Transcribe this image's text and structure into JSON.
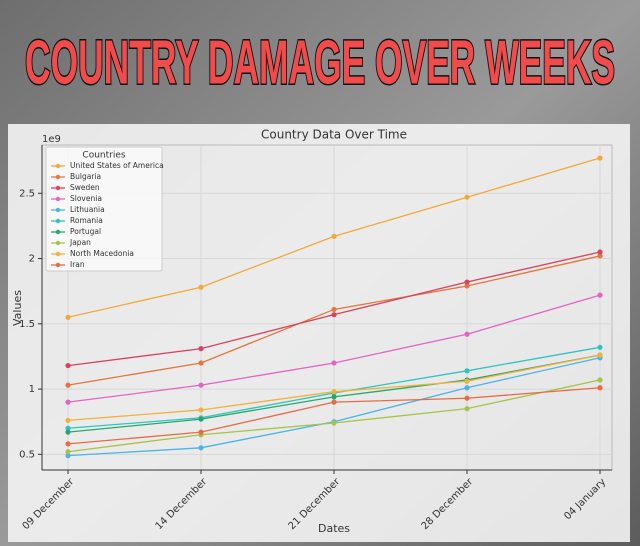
{
  "header": {
    "title": "COUNTRY DAMAGE OVER WEEKS"
  },
  "chart_data": {
    "type": "line",
    "title": "Country Data Over Time",
    "x_label": "Dates",
    "y_label": "Values",
    "y_offset_label": "1e9",
    "legend_title": "Countries",
    "legend_position": "upper left",
    "grid": true,
    "categories": [
      "09 December",
      "14 December",
      "21 December",
      "28 December",
      "04 January"
    ],
    "ylim": [
      0.38,
      2.87
    ],
    "yticks": [
      0.5,
      1.0,
      1.5,
      2.0,
      2.5
    ],
    "series": [
      {
        "name": "United States of America",
        "color": "#f2a93b",
        "values": [
          1.55,
          1.78,
          2.17,
          2.47,
          2.77
        ]
      },
      {
        "name": "Bulgaria",
        "color": "#e8743b",
        "values": [
          1.03,
          1.2,
          1.61,
          1.79,
          2.02
        ]
      },
      {
        "name": "Sweden",
        "color": "#d9435e",
        "values": [
          1.18,
          1.31,
          1.57,
          1.82,
          2.05
        ]
      },
      {
        "name": "Slovenia",
        "color": "#e563c4",
        "values": [
          0.9,
          1.03,
          1.2,
          1.42,
          1.72
        ]
      },
      {
        "name": "Lithuania",
        "color": "#4ab4e8",
        "values": [
          0.49,
          0.55,
          0.75,
          1.01,
          1.24
        ]
      },
      {
        "name": "Romania",
        "color": "#2ec4c4",
        "values": [
          0.7,
          0.78,
          0.97,
          1.14,
          1.32
        ]
      },
      {
        "name": "Portugal",
        "color": "#27a86a",
        "values": [
          0.67,
          0.77,
          0.94,
          1.07,
          1.26
        ]
      },
      {
        "name": "Japan",
        "color": "#a4c44a",
        "values": [
          0.52,
          0.65,
          0.74,
          0.85,
          1.07
        ]
      },
      {
        "name": "North Macedonia",
        "color": "#f3b13a",
        "values": [
          0.76,
          0.84,
          0.98,
          1.06,
          1.26
        ]
      },
      {
        "name": "Iran",
        "color": "#e86b44",
        "values": [
          0.58,
          0.67,
          0.9,
          0.93,
          1.01
        ]
      }
    ]
  }
}
